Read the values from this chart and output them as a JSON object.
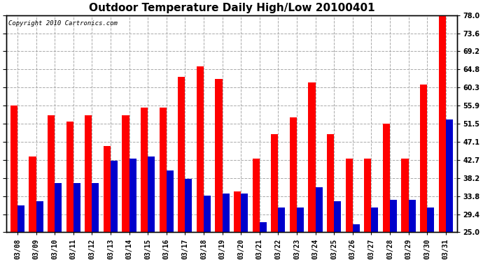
{
  "title": "Outdoor Temperature Daily High/Low 20100401",
  "copyright_text": "Copyright 2010 Cartronics.com",
  "dates": [
    "03/08",
    "03/09",
    "03/10",
    "03/11",
    "03/12",
    "03/13",
    "03/14",
    "03/15",
    "03/16",
    "03/17",
    "03/18",
    "03/19",
    "03/20",
    "03/21",
    "03/22",
    "03/23",
    "03/24",
    "03/25",
    "03/26",
    "03/27",
    "03/28",
    "03/29",
    "03/30",
    "03/31"
  ],
  "highs": [
    56.0,
    43.5,
    53.5,
    52.0,
    53.5,
    46.0,
    53.5,
    55.5,
    55.5,
    63.0,
    65.5,
    62.5,
    35.0,
    43.0,
    49.0,
    53.0,
    61.5,
    49.0,
    43.0,
    43.0,
    51.5,
    43.0,
    61.0,
    78.0
  ],
  "lows": [
    31.5,
    32.5,
    37.0,
    37.0,
    37.0,
    42.5,
    43.0,
    43.5,
    40.0,
    38.0,
    34.0,
    34.5,
    34.5,
    27.5,
    31.0,
    31.0,
    36.0,
    32.5,
    27.0,
    31.0,
    33.0,
    33.0,
    31.0,
    52.5
  ],
  "high_color": "#ff0000",
  "low_color": "#0000cc",
  "bg_color": "#ffffff",
  "plot_bg_color": "#ffffff",
  "grid_color": "#aaaaaa",
  "ylim": [
    25.0,
    78.0
  ],
  "yticks": [
    25.0,
    29.4,
    33.8,
    38.2,
    42.7,
    47.1,
    51.5,
    55.9,
    60.3,
    64.8,
    69.2,
    73.6,
    78.0
  ],
  "bar_width": 0.38,
  "title_fontsize": 11,
  "tick_fontsize": 7,
  "copyright_fontsize": 6.5,
  "figsize": [
    6.9,
    3.75
  ],
  "dpi": 100
}
